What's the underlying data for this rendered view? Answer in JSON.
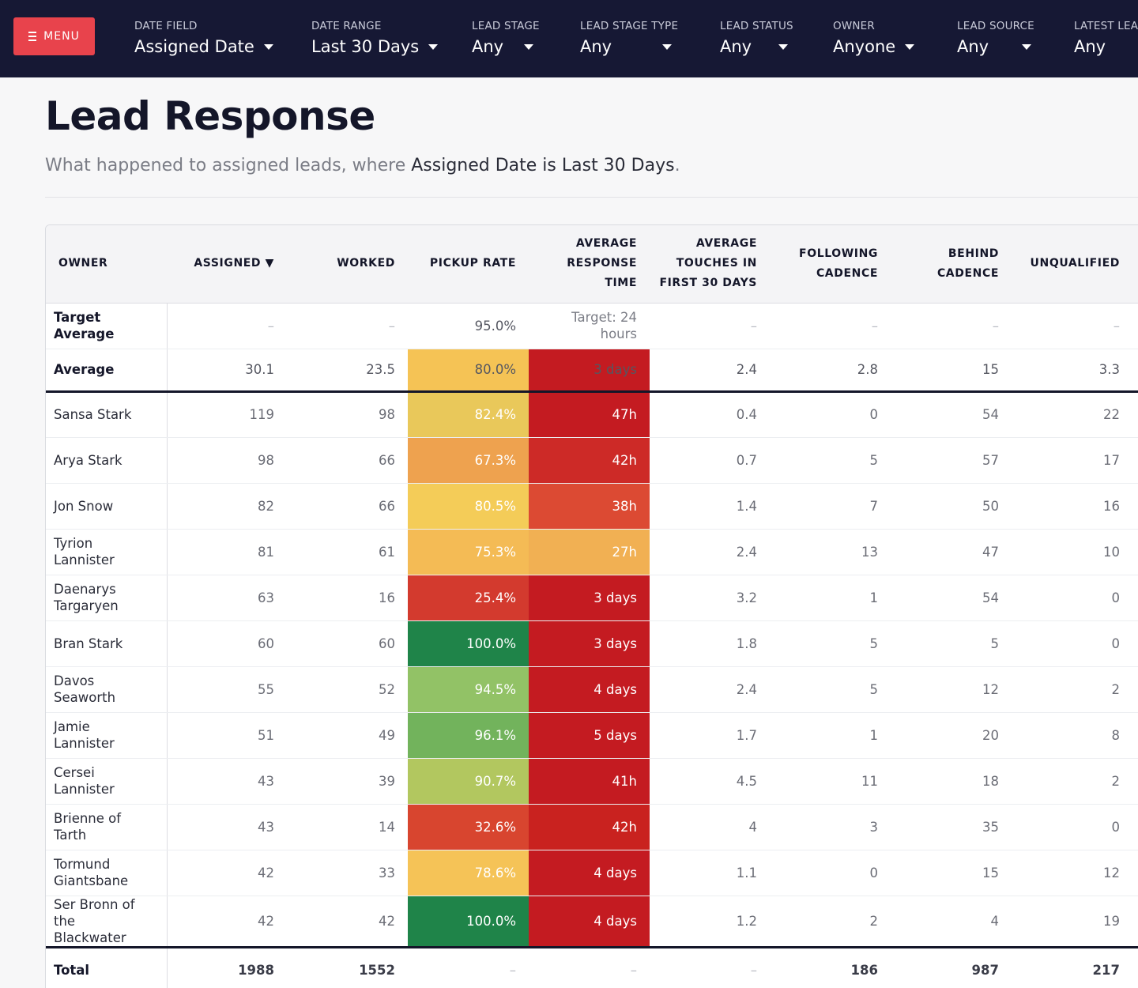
{
  "menu": {
    "label": "MENU"
  },
  "filters": [
    {
      "label": "DATE FIELD",
      "value": "Assigned Date"
    },
    {
      "label": "DATE RANGE",
      "value": "Last 30 Days"
    },
    {
      "label": "LEAD STAGE",
      "value": "Any"
    },
    {
      "label": "LEAD STAGE TYPE",
      "value": "Any"
    },
    {
      "label": "LEAD STATUS",
      "value": "Any"
    },
    {
      "label": "OWNER",
      "value": "Anyone"
    },
    {
      "label": "LEAD SOURCE",
      "value": "Any"
    },
    {
      "label": "LATEST LEA",
      "value": "Any"
    }
  ],
  "page": {
    "title": "Lead Response",
    "subtitle_prefix": "What happened to assigned leads, where ",
    "subtitle_bold": "Assigned Date is Last 30 Days",
    "subtitle_suffix": "."
  },
  "table": {
    "columns": [
      {
        "line1": "OWNER",
        "line2": "",
        "line3": ""
      },
      {
        "line1": "ASSIGNED ▼",
        "line2": "",
        "line3": ""
      },
      {
        "line1": "WORKED",
        "line2": "",
        "line3": ""
      },
      {
        "line1": "PICKUP RATE",
        "line2": "",
        "line3": ""
      },
      {
        "line1": "AVERAGE",
        "line2": "RESPONSE",
        "line3": "TIME"
      },
      {
        "line1": "AVERAGE",
        "line2": "TOUCHES IN",
        "line3": "FIRST 30 DAYS"
      },
      {
        "line1": "FOLLOWING",
        "line2": "CADENCE",
        "line3": ""
      },
      {
        "line1": "BEHIND",
        "line2": "CADENCE",
        "line3": ""
      },
      {
        "line1": "UNQUALIFIED",
        "line2": "",
        "line3": ""
      }
    ],
    "target_row": {
      "name": "Target Average",
      "assigned": "–",
      "worked": "–",
      "pickup": "95.0%",
      "response_line1": "Target: 24",
      "response_line2": "hours",
      "touches": "–",
      "following": "–",
      "behind": "–",
      "unqualified": "–"
    },
    "average_row": {
      "name": "Average",
      "assigned": "30.1",
      "worked": "23.5",
      "pickup": "80.0%",
      "pickup_color": "#f5c355",
      "response": "3 days",
      "response_color": "#c41b21",
      "touches": "2.4",
      "following": "2.8",
      "behind": "15",
      "unqualified": "3.3"
    },
    "rows": [
      {
        "name1": "Sansa Stark",
        "name2": "",
        "assigned": "119",
        "worked": "98",
        "pickup": "82.4%",
        "pickup_color": "#e9c85a",
        "response": "47h",
        "response_color": "#c41b21",
        "touches": "0.4",
        "following": "0",
        "behind": "54",
        "unqualified": "22"
      },
      {
        "name1": "Arya Stark",
        "name2": "",
        "assigned": "98",
        "worked": "66",
        "pickup": "67.3%",
        "pickup_color": "#eea24f",
        "response": "42h",
        "response_color": "#cd2a27",
        "touches": "0.7",
        "following": "5",
        "behind": "57",
        "unqualified": "17"
      },
      {
        "name1": "Jon Snow",
        "name2": "",
        "assigned": "82",
        "worked": "66",
        "pickup": "80.5%",
        "pickup_color": "#f4cc58",
        "response": "38h",
        "response_color": "#dc4a33",
        "touches": "1.4",
        "following": "7",
        "behind": "50",
        "unqualified": "16"
      },
      {
        "name1": "Tyrion Lannister",
        "name2": "",
        "assigned": "81",
        "worked": "61",
        "pickup": "75.3%",
        "pickup_color": "#f4bb55",
        "response": "27h",
        "response_color": "#f1b053",
        "touches": "2.4",
        "following": "13",
        "behind": "47",
        "unqualified": "10"
      },
      {
        "name1": "Daenarys",
        "name2": "Targaryen",
        "assigned": "63",
        "worked": "16",
        "pickup": "25.4%",
        "pickup_color": "#d33a2e",
        "response": "3 days",
        "response_color": "#c41b21",
        "touches": "3.2",
        "following": "1",
        "behind": "54",
        "unqualified": "0"
      },
      {
        "name1": "Bran Stark",
        "name2": "",
        "assigned": "60",
        "worked": "60",
        "pickup": "100.0%",
        "pickup_color": "#1f8449",
        "response": "3 days",
        "response_color": "#c41b21",
        "touches": "1.8",
        "following": "5",
        "behind": "5",
        "unqualified": "0"
      },
      {
        "name1": "Davos Seaworth",
        "name2": "",
        "assigned": "55",
        "worked": "52",
        "pickup": "94.5%",
        "pickup_color": "#92c266",
        "response": "4 days",
        "response_color": "#c41b21",
        "touches": "2.4",
        "following": "5",
        "behind": "12",
        "unqualified": "2"
      },
      {
        "name1": "Jamie Lannister",
        "name2": "",
        "assigned": "51",
        "worked": "49",
        "pickup": "96.1%",
        "pickup_color": "#72b35c",
        "response": "5 days",
        "response_color": "#c41b21",
        "touches": "1.7",
        "following": "1",
        "behind": "20",
        "unqualified": "8"
      },
      {
        "name1": "Cersei Lannister",
        "name2": "",
        "assigned": "43",
        "worked": "39",
        "pickup": "90.7%",
        "pickup_color": "#b2c75f",
        "response": "41h",
        "response_color": "#c41b21",
        "touches": "4.5",
        "following": "11",
        "behind": "18",
        "unqualified": "2"
      },
      {
        "name1": "Brienne of Tarth",
        "name2": "",
        "assigned": "43",
        "worked": "14",
        "pickup": "32.6%",
        "pickup_color": "#d8452f",
        "response": "42h",
        "response_color": "#c9221f",
        "touches": "4",
        "following": "3",
        "behind": "35",
        "unqualified": "0"
      },
      {
        "name1": "Tormund",
        "name2": "Giantsbane",
        "assigned": "42",
        "worked": "33",
        "pickup": "78.6%",
        "pickup_color": "#f5c357",
        "response": "4 days",
        "response_color": "#c41b21",
        "touches": "1.1",
        "following": "0",
        "behind": "15",
        "unqualified": "12"
      },
      {
        "name1": "Ser Bronn of the",
        "name2": "Blackwater",
        "assigned": "42",
        "worked": "42",
        "pickup": "100.0%",
        "pickup_color": "#1f8449",
        "response": "4 days",
        "response_color": "#c41b21",
        "touches": "1.2",
        "following": "2",
        "behind": "4",
        "unqualified": "19"
      }
    ],
    "total_row": {
      "name": "Total",
      "assigned": "1988",
      "worked": "1552",
      "pickup": "–",
      "response": "–",
      "touches": "–",
      "following": "186",
      "behind": "987",
      "unqualified": "217"
    }
  }
}
